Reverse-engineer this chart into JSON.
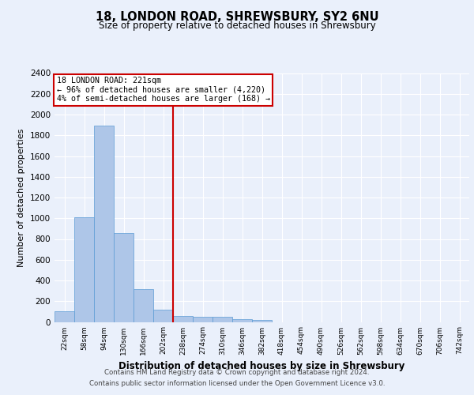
{
  "title1": "18, LONDON ROAD, SHREWSBURY, SY2 6NU",
  "title2": "Size of property relative to detached houses in Shrewsbury",
  "xlabel": "Distribution of detached houses by size in Shrewsbury",
  "ylabel": "Number of detached properties",
  "bin_labels": [
    "22sqm",
    "58sqm",
    "94sqm",
    "130sqm",
    "166sqm",
    "202sqm",
    "238sqm",
    "274sqm",
    "310sqm",
    "346sqm",
    "382sqm",
    "418sqm",
    "454sqm",
    "490sqm",
    "526sqm",
    "562sqm",
    "598sqm",
    "634sqm",
    "670sqm",
    "706sqm",
    "742sqm"
  ],
  "bar_values": [
    100,
    1010,
    1890,
    860,
    315,
    120,
    60,
    50,
    50,
    25,
    20,
    0,
    0,
    0,
    0,
    0,
    0,
    0,
    0,
    0,
    0
  ],
  "bar_color": "#aec6e8",
  "bar_edge_color": "#5b9bd5",
  "vline_bin_index": 6,
  "vline_color": "#cc0000",
  "annotation_line1": "18 LONDON ROAD: 221sqm",
  "annotation_line2": "← 96% of detached houses are smaller (4,220)",
  "annotation_line3": "4% of semi-detached houses are larger (168) →",
  "annotation_box_color": "#cc0000",
  "ylim": [
    0,
    2400
  ],
  "yticks": [
    0,
    200,
    400,
    600,
    800,
    1000,
    1200,
    1400,
    1600,
    1800,
    2000,
    2200,
    2400
  ],
  "footer1": "Contains HM Land Registry data © Crown copyright and database right 2024.",
  "footer2": "Contains public sector information licensed under the Open Government Licence v3.0.",
  "bg_color": "#eaf0fb",
  "plot_bg_color": "#eaf0fb",
  "grid_color": "#ffffff"
}
